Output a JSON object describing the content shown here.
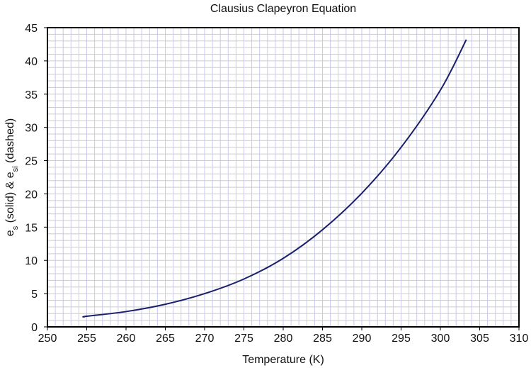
{
  "chart_data": {
    "type": "line",
    "title": "Clausius Clapeyron Equation",
    "xlabel": "Temperature (K)",
    "ylabel": {
      "parts": [
        {
          "text": "e",
          "sub": false
        },
        {
          "text": "s",
          "sub": true
        },
        {
          "text": " (solid) & e",
          "sub": false
        },
        {
          "text": "si",
          "sub": true
        },
        {
          "text": " (dashed)",
          "sub": false
        }
      ]
    },
    "xlim": [
      250,
      310
    ],
    "ylim": [
      0,
      45
    ],
    "xticks": [
      250,
      255,
      260,
      265,
      270,
      275,
      280,
      285,
      290,
      295,
      300,
      305,
      310
    ],
    "yticks": [
      0,
      5,
      10,
      15,
      20,
      25,
      30,
      35,
      40,
      45
    ],
    "grid": true,
    "colors": {
      "line": "#1a1f6b",
      "vgrid": "#c9c9f0",
      "hgrid": "#cccccc",
      "axis": "#000000"
    },
    "series": [
      {
        "style": "solid",
        "x": [
          254.7,
          255,
          260,
          265,
          270,
          275,
          280,
          285,
          290,
          295,
          300,
          303.3
        ],
        "y": [
          1.5,
          1.6,
          2.3,
          3.4,
          5.0,
          7.2,
          10.3,
          14.6,
          20.1,
          27.0,
          35.6,
          43.2
        ]
      }
    ]
  }
}
